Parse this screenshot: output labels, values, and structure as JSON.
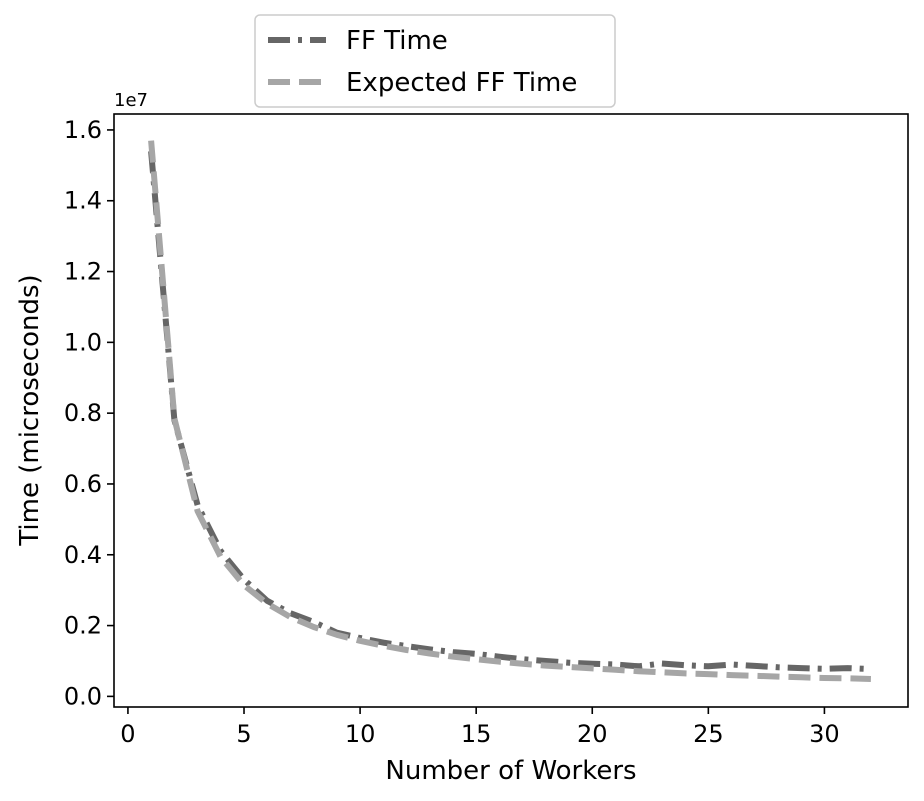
{
  "chart_data": {
    "type": "line",
    "xlabel": "Number of Workers",
    "ylabel": "Time (microseconds)",
    "y_offset_label": "1e7",
    "xlim": [
      -0.6,
      33.6
    ],
    "ylim": [
      -0.03,
      1.645
    ],
    "xticks": [
      0,
      5,
      10,
      15,
      20,
      25,
      30
    ],
    "yticks": [
      0.0,
      0.2,
      0.4,
      0.6,
      0.8,
      1.0,
      1.2,
      1.4,
      1.6
    ],
    "ytick_labels": [
      "0.0",
      "0.2",
      "0.4",
      "0.6",
      "0.8",
      "1.0",
      "1.2",
      "1.4",
      "1.6"
    ],
    "grid": false,
    "legend_position": "top-center-outside",
    "series": [
      {
        "name": "FF Time",
        "style": "dashdot",
        "color": "#666666",
        "x": [
          1,
          2,
          3,
          4,
          5,
          6,
          7,
          8,
          9,
          10,
          11,
          12,
          13,
          14,
          15,
          16,
          17,
          18,
          19,
          20,
          21,
          22,
          23,
          24,
          25,
          26,
          27,
          28,
          29,
          30,
          31,
          32
        ],
        "values": [
          1.54,
          0.78,
          0.54,
          0.41,
          0.33,
          0.27,
          0.235,
          0.21,
          0.18,
          0.165,
          0.152,
          0.142,
          0.133,
          0.125,
          0.12,
          0.112,
          0.105,
          0.1,
          0.095,
          0.092,
          0.09,
          0.085,
          0.093,
          0.088,
          0.085,
          0.09,
          0.086,
          0.082,
          0.08,
          0.078,
          0.08,
          0.077
        ]
      },
      {
        "name": "Expected FF Time",
        "style": "dashed",
        "color": "#a6a6a6",
        "x": [
          1,
          2,
          3,
          4,
          5,
          6,
          7,
          8,
          9,
          10,
          11,
          12,
          13,
          14,
          15,
          16,
          17,
          18,
          19,
          20,
          21,
          22,
          23,
          24,
          25,
          26,
          27,
          28,
          29,
          30,
          31,
          32
        ],
        "values": [
          1.57,
          0.785,
          0.523,
          0.393,
          0.314,
          0.262,
          0.224,
          0.196,
          0.174,
          0.157,
          0.143,
          0.131,
          0.121,
          0.112,
          0.105,
          0.098,
          0.092,
          0.087,
          0.083,
          0.079,
          0.075,
          0.071,
          0.068,
          0.065,
          0.063,
          0.06,
          0.058,
          0.056,
          0.054,
          0.052,
          0.051,
          0.049
        ]
      }
    ]
  }
}
